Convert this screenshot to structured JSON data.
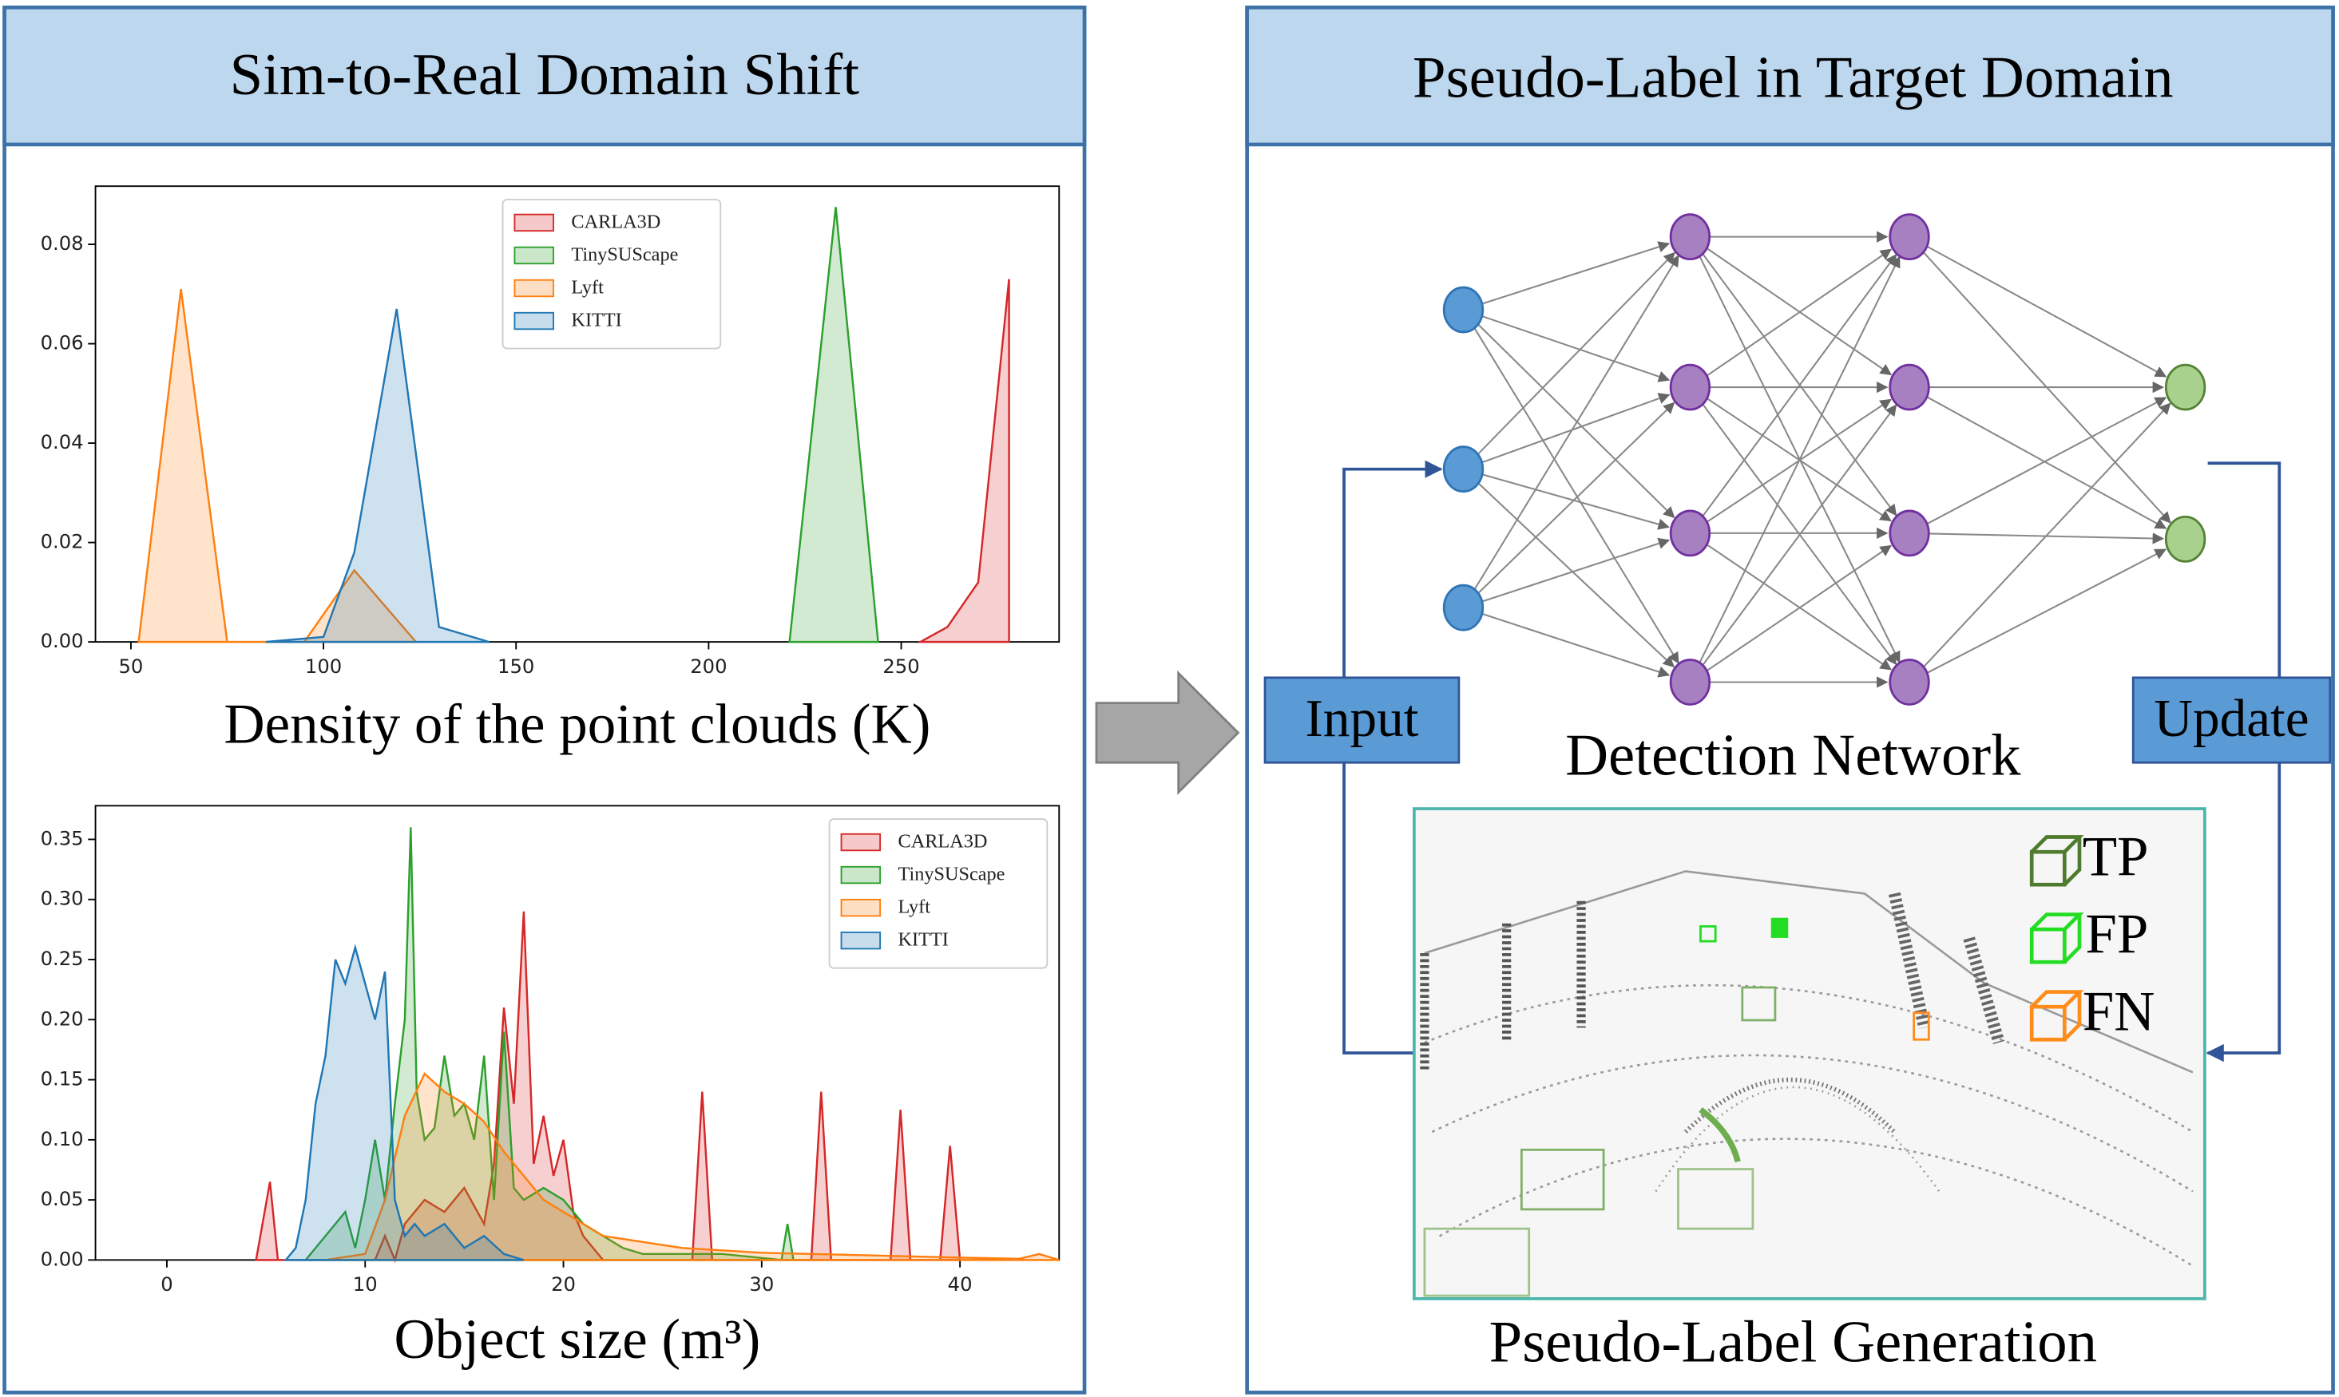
{
  "left_panel": {
    "title": "Sim-to-Real Domain Shift"
  },
  "chart_data": [
    {
      "type": "area",
      "xlabel": "Density of the point clouds (K)",
      "xlim": [
        40.8,
        291
      ],
      "ylim": [
        0,
        0.0917
      ],
      "xticks": [
        50,
        100,
        150,
        200,
        250
      ],
      "yticks": [
        {
          "value": 0,
          "label": "0.00"
        },
        {
          "value": 0.02,
          "label": "0.02"
        },
        {
          "value": 0.04,
          "label": "0.04"
        },
        {
          "value": 0.06,
          "label": "0.06"
        },
        {
          "value": 0.08,
          "label": "0.08"
        }
      ],
      "legend": "upper center",
      "series": [
        {
          "name": "CARLA3D",
          "color": "#d62728",
          "x": [
            255,
            262,
            270,
            278,
            278
          ],
          "values": [
            0,
            0.003,
            0.012,
            0.073,
            0
          ]
        },
        {
          "name": "TinySUScape",
          "color": "#2ca02c",
          "x": [
            221,
            233,
            244
          ],
          "values": [
            0,
            0.0875,
            0
          ]
        },
        {
          "name": "Lyft",
          "color": "#ff7f0e",
          "x": [
            52,
            63,
            75,
            95,
            108,
            124
          ],
          "values": [
            0,
            0.071,
            0,
            0,
            0.0144,
            0
          ]
        },
        {
          "name": "KITTI",
          "color": "#1f77b4",
          "x": [
            85,
            100,
            108,
            119,
            130,
            143
          ],
          "values": [
            0,
            0.001,
            0.018,
            0.067,
            0.003,
            0
          ]
        }
      ]
    },
    {
      "type": "area",
      "xlabel": "Object size (m³)",
      "xlim": [
        -3.6,
        45
      ],
      "ylim": [
        0,
        0.378
      ],
      "xticks": [
        0,
        10,
        20,
        30,
        40
      ],
      "yticks": [
        {
          "value": 0,
          "label": "0.00"
        },
        {
          "value": 0.05,
          "label": "0.05"
        },
        {
          "value": 0.1,
          "label": "0.10"
        },
        {
          "value": 0.15,
          "label": "0.15"
        },
        {
          "value": 0.2,
          "label": "0.20"
        },
        {
          "value": 0.25,
          "label": "0.25"
        },
        {
          "value": 0.3,
          "label": "0.30"
        },
        {
          "value": 0.35,
          "label": "0.35"
        }
      ],
      "legend": "upper right",
      "series": [
        {
          "name": "CARLA3D",
          "color": "#d62728",
          "x": [
            4.5,
            5.2,
            5.6,
            10.5,
            11,
            11.5,
            12,
            13,
            14,
            15,
            16,
            16.5,
            17,
            17.5,
            18,
            18.5,
            19,
            19.5,
            20,
            20.5,
            21,
            22,
            26.5,
            27,
            27.5,
            32.5,
            33,
            33.5,
            36.5,
            37,
            37.5,
            39,
            39.5,
            40
          ],
          "values": [
            0,
            0.065,
            0,
            0,
            0.02,
            0,
            0.03,
            0.05,
            0.04,
            0.06,
            0.03,
            0.08,
            0.21,
            0.13,
            0.29,
            0.08,
            0.12,
            0.07,
            0.1,
            0.04,
            0.02,
            0,
            0,
            0.14,
            0,
            0,
            0.14,
            0,
            0,
            0.125,
            0,
            0,
            0.095,
            0
          ]
        },
        {
          "name": "TinySUScape",
          "color": "#2ca02c",
          "x": [
            7,
            8,
            9,
            9.5,
            10,
            10.5,
            11,
            11.5,
            12,
            12.3,
            12.6,
            13,
            13.5,
            14,
            14.5,
            15,
            15.5,
            16,
            16.5,
            17,
            17.5,
            18,
            19,
            20,
            21,
            22,
            23,
            24,
            28,
            31,
            31.3,
            31.6,
            33
          ],
          "values": [
            0,
            0.02,
            0.04,
            0.01,
            0.05,
            0.1,
            0.05,
            0.13,
            0.2,
            0.36,
            0.14,
            0.1,
            0.11,
            0.17,
            0.12,
            0.13,
            0.1,
            0.17,
            0.05,
            0.19,
            0.06,
            0.05,
            0.06,
            0.05,
            0.03,
            0.02,
            0.01,
            0.005,
            0.005,
            0,
            0.03,
            0,
            0
          ]
        },
        {
          "name": "Lyft",
          "color": "#ff7f0e",
          "x": [
            8,
            10,
            11,
            12,
            13,
            14,
            15,
            16,
            17,
            18,
            19,
            20,
            21,
            22,
            24,
            26,
            28,
            30,
            35,
            40,
            43,
            44,
            45
          ],
          "values": [
            0,
            0.005,
            0.05,
            0.12,
            0.155,
            0.14,
            0.13,
            0.115,
            0.09,
            0.07,
            0.05,
            0.04,
            0.03,
            0.02,
            0.015,
            0.01,
            0.008,
            0.006,
            0.004,
            0.002,
            0.001,
            0.005,
            0
          ]
        },
        {
          "name": "KITTI",
          "color": "#1f77b4",
          "x": [
            6,
            6.5,
            7,
            7.5,
            8,
            8.5,
            9,
            9.5,
            10,
            10.5,
            11,
            11.5,
            12,
            12.5,
            13,
            14,
            15,
            16,
            17,
            18
          ],
          "values": [
            0,
            0.01,
            0.05,
            0.13,
            0.17,
            0.25,
            0.23,
            0.26,
            0.23,
            0.2,
            0.24,
            0.05,
            0.02,
            0.03,
            0.02,
            0.03,
            0.01,
            0.02,
            0.005,
            0
          ]
        }
      ]
    }
  ],
  "right_panel": {
    "title": "Pseudo-Label in Target Domain",
    "network_label": "Detection Network",
    "input_button": "Input",
    "update_button": "Update",
    "legend": [
      "TP",
      "FP",
      "FN"
    ],
    "caption": "Pseudo-Label Generation"
  }
}
